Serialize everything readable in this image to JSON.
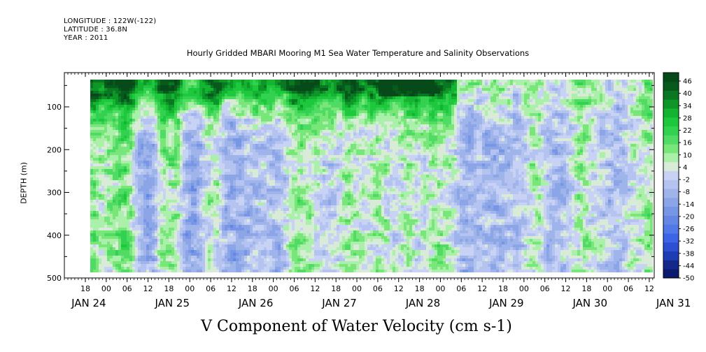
{
  "header": {
    "longitude": "LONGITUDE : 122W(-122)",
    "latitude": "LATITUDE : 36.8N",
    "year": "YEAR : 2011"
  },
  "chart_data": {
    "type": "heatmap",
    "title": "Hourly Gridded MBARI Mooring M1 Sea Water Temperature and Salinity Observations",
    "xlabel": "V Component of Water Velocity (cm s-1)",
    "ylabel": "DEPTH (m)",
    "ylim": [
      500,
      20
    ],
    "y_ticks": [
      "100",
      "200",
      "300",
      "400",
      "500"
    ],
    "x_hour_ticks": [
      "18",
      "00",
      "06",
      "12",
      "18",
      "00",
      "06",
      "12",
      "18",
      "00",
      "06",
      "12",
      "18",
      "00",
      "06",
      "12",
      "18",
      "00",
      "06",
      "12",
      "18",
      "00",
      "06",
      "12",
      "18",
      "00",
      "06",
      "12"
    ],
    "x_day_labels": [
      "JAN 24",
      "JAN 25",
      "JAN 26",
      "JAN 27",
      "JAN 28",
      "JAN 29",
      "JAN 30",
      "JAN 31"
    ],
    "colorbar_levels": [
      "46",
      "40",
      "34",
      "28",
      "22",
      "16",
      "10",
      "4",
      "-2",
      "-8",
      "-14",
      "-20",
      "-26",
      "-32",
      "-38",
      "-44",
      "-50"
    ],
    "colors": {
      "bins": [
        "#0a1a6e",
        "#14288c",
        "#1e3cb4",
        "#2d50d2",
        "#3c64e6",
        "#5078e6",
        "#6487e6",
        "#7896e6",
        "#8ca5e6",
        "#a0b4ec",
        "#b4c3f0",
        "#c8d2f4",
        "#d7ebd7",
        "#aaf0aa",
        "#78e678",
        "#50dc64",
        "#32d250",
        "#1ec83c",
        "#14b432",
        "#0f9628",
        "#0a7823",
        "#075a1c",
        "#054a18"
      ]
    },
    "surface_band": {
      "description_values": "strong positive (16 to 46) near surface, alternating positive/negative columns at depth"
    }
  }
}
